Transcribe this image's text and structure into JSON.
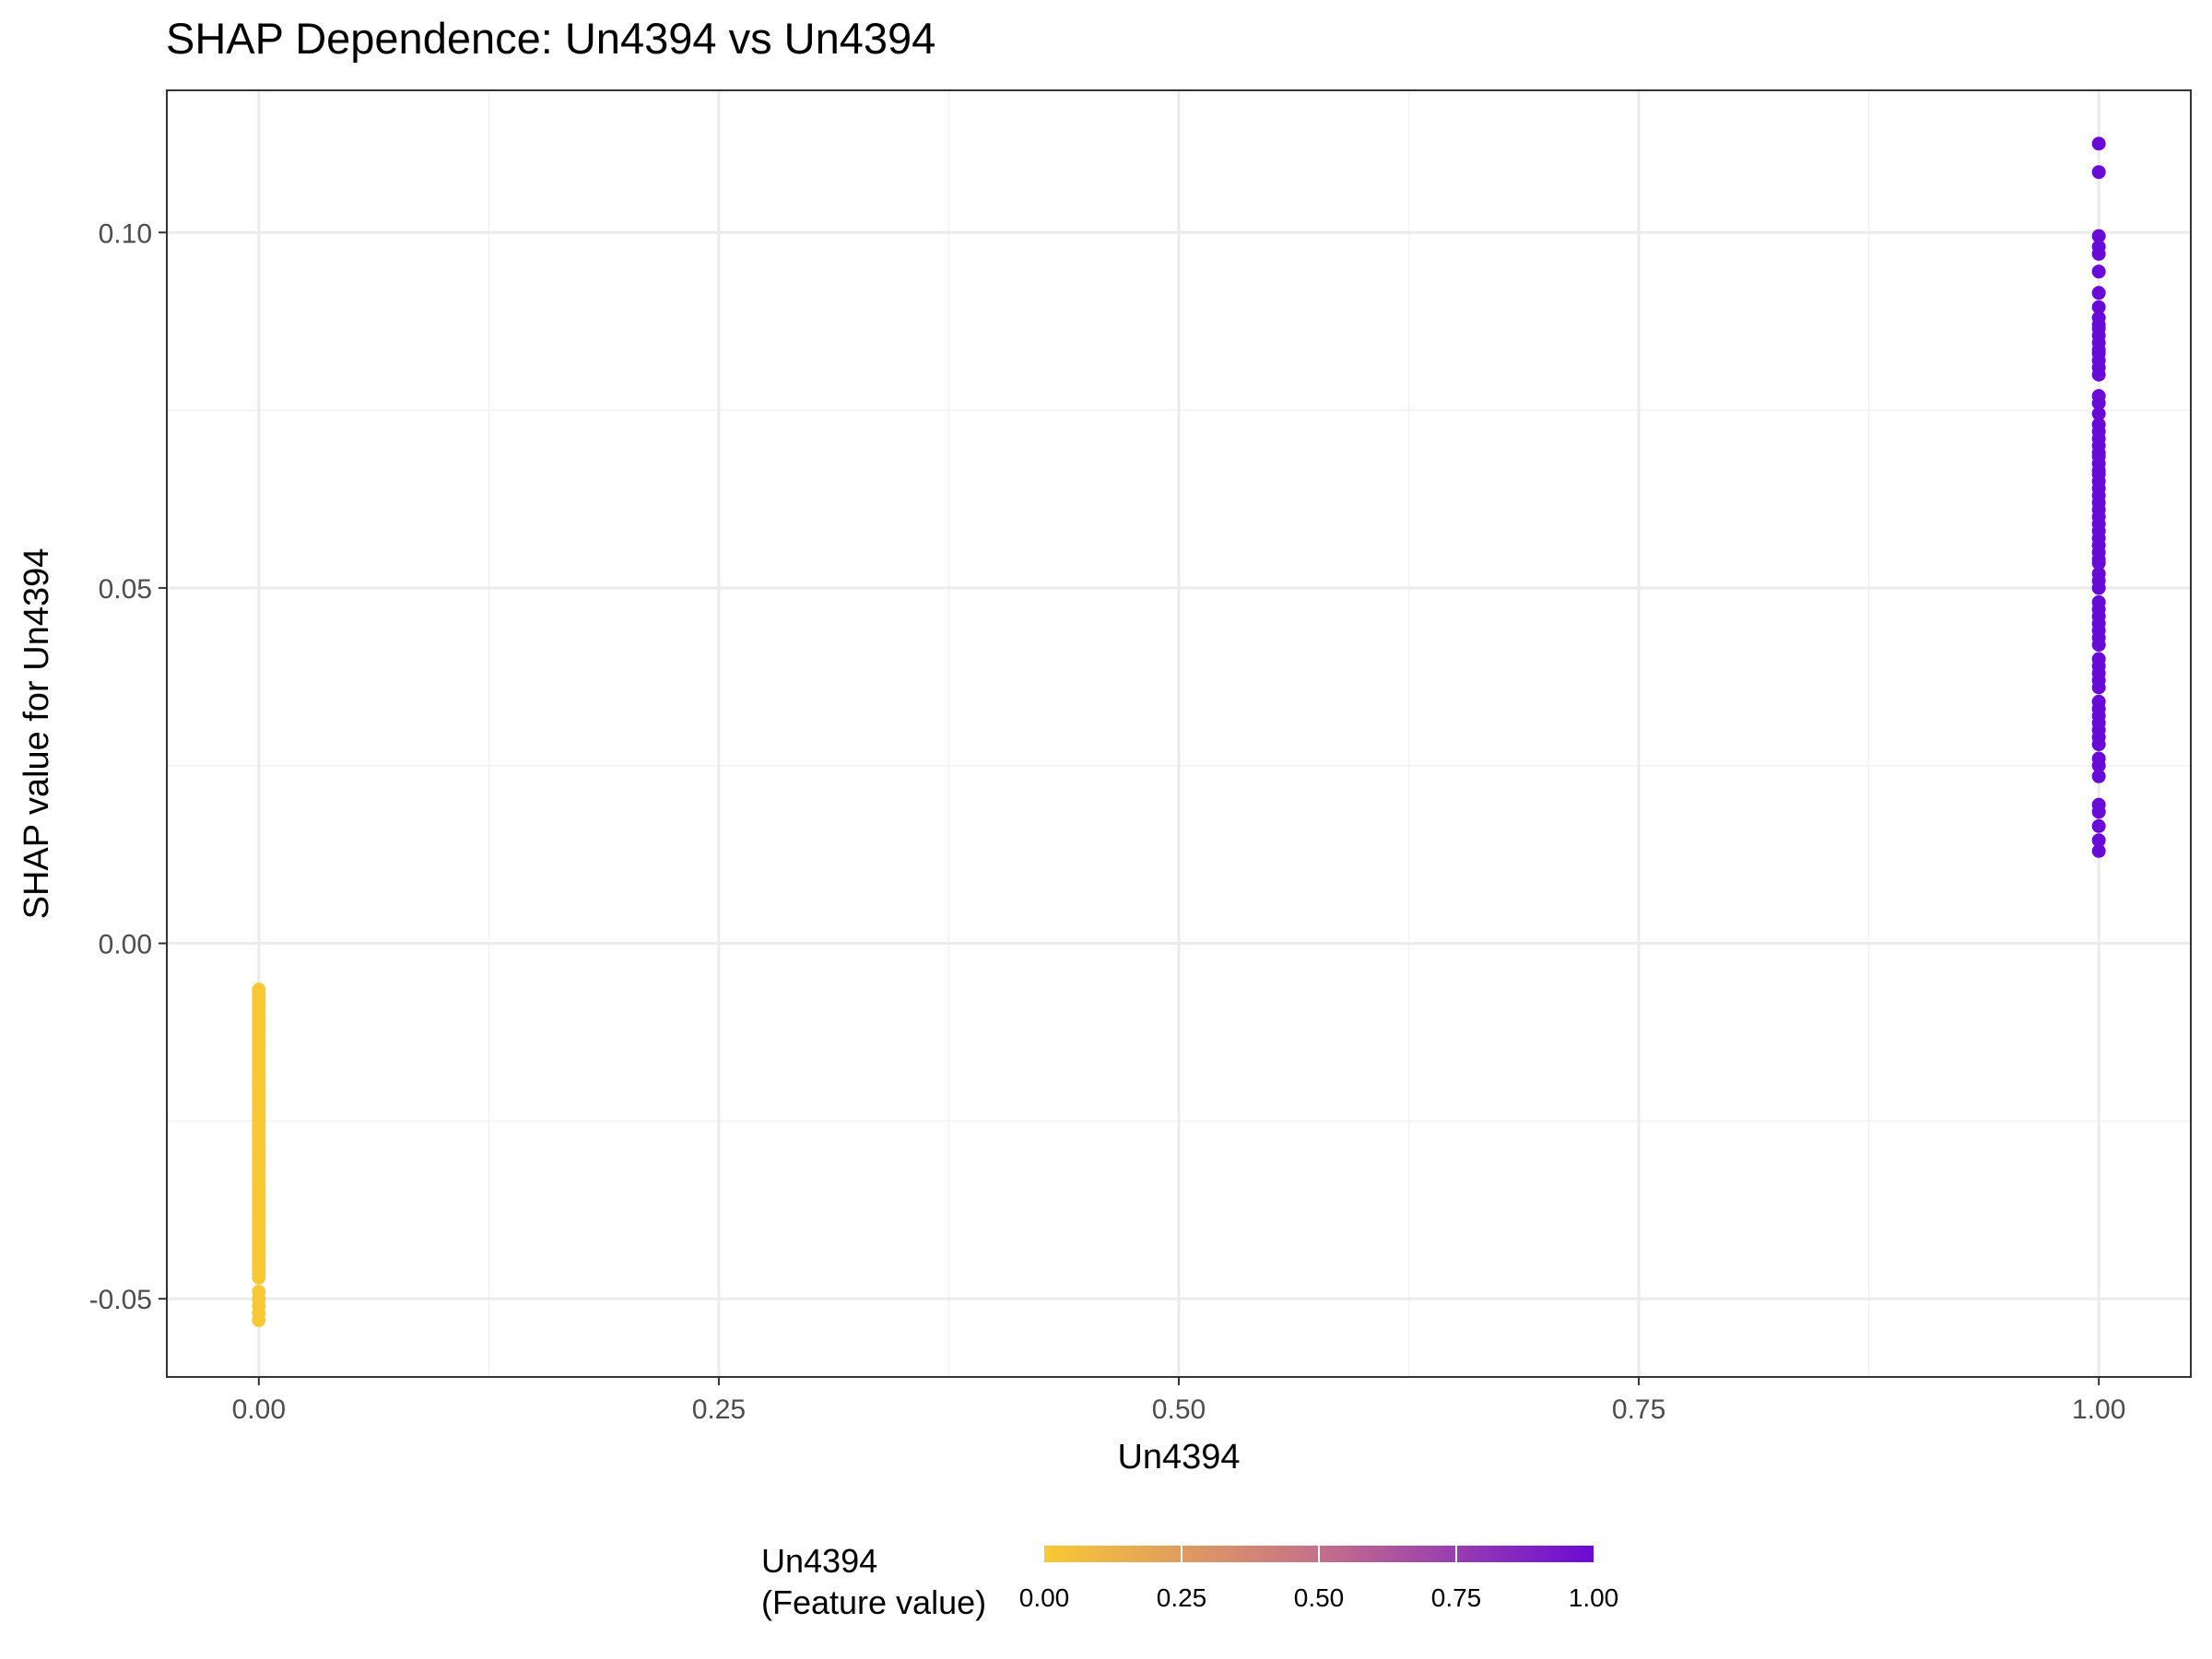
{
  "chart_data": {
    "type": "scatter",
    "title": "SHAP Dependence: Un4394 vs Un4394",
    "xlabel": "Un4394",
    "ylabel": "SHAP value for Un4394",
    "xlim": [
      -0.05,
      1.05
    ],
    "ylim": [
      -0.061,
      0.12
    ],
    "x_ticks": [
      0.0,
      0.25,
      0.5,
      0.75,
      1.0
    ],
    "x_tick_labels": [
      "0.00",
      "0.25",
      "0.50",
      "0.75",
      "1.00"
    ],
    "y_ticks": [
      -0.05,
      0.0,
      0.05,
      0.1
    ],
    "y_tick_labels": [
      "-0.05",
      "0.00",
      "0.05",
      "0.10"
    ],
    "grid": true,
    "legend": {
      "title_line1": "Un4394",
      "title_line2": "(Feature value)",
      "placement": "bottom",
      "ticks": [
        0.0,
        0.25,
        0.5,
        0.75,
        1.0
      ],
      "tick_labels": [
        "0.00",
        "0.25",
        "0.50",
        "0.75",
        "1.00"
      ],
      "color_low": "#f9c934",
      "color_high": "#6a0ad6"
    },
    "series": [
      {
        "feature_value": 0,
        "color": "#f9c934",
        "x": 0,
        "y": [
          -0.0065,
          -0.007,
          -0.0075,
          -0.008,
          -0.0085,
          -0.009,
          -0.0095,
          -0.01,
          -0.0105,
          -0.011,
          -0.0115,
          -0.012,
          -0.0125,
          -0.013,
          -0.0135,
          -0.014,
          -0.0145,
          -0.015,
          -0.0155,
          -0.016,
          -0.0165,
          -0.017,
          -0.0175,
          -0.018,
          -0.0185,
          -0.019,
          -0.0195,
          -0.02,
          -0.0205,
          -0.021,
          -0.0215,
          -0.022,
          -0.0225,
          -0.023,
          -0.0235,
          -0.024,
          -0.0245,
          -0.025,
          -0.0255,
          -0.026,
          -0.0265,
          -0.027,
          -0.0275,
          -0.028,
          -0.0285,
          -0.029,
          -0.0295,
          -0.03,
          -0.0305,
          -0.031,
          -0.0315,
          -0.032,
          -0.0325,
          -0.033,
          -0.0335,
          -0.034,
          -0.0345,
          -0.035,
          -0.0355,
          -0.036,
          -0.0365,
          -0.037,
          -0.0375,
          -0.038,
          -0.0385,
          -0.039,
          -0.0395,
          -0.04,
          -0.0405,
          -0.041,
          -0.0415,
          -0.042,
          -0.0425,
          -0.043,
          -0.0435,
          -0.044,
          -0.0445,
          -0.045,
          -0.0455,
          -0.046,
          -0.0465,
          -0.047,
          -0.049,
          -0.05,
          -0.051,
          -0.052,
          -0.053
        ]
      },
      {
        "feature_value": 1,
        "color": "#6a0ad6",
        "x": 1,
        "y": [
          0.1125,
          0.1085,
          0.0995,
          0.098,
          0.097,
          0.0945,
          0.0915,
          0.0895,
          0.088,
          0.087,
          0.0865,
          0.0855,
          0.0845,
          0.0835,
          0.083,
          0.082,
          0.081,
          0.08,
          0.077,
          0.076,
          0.0745,
          0.073,
          0.072,
          0.071,
          0.07,
          0.069,
          0.0685,
          0.0675,
          0.0665,
          0.066,
          0.065,
          0.064,
          0.063,
          0.062,
          0.061,
          0.06,
          0.059,
          0.058,
          0.057,
          0.056,
          0.055,
          0.054,
          0.0535,
          0.052,
          0.051,
          0.05,
          0.048,
          0.047,
          0.046,
          0.045,
          0.044,
          0.043,
          0.042,
          0.04,
          0.039,
          0.038,
          0.037,
          0.036,
          0.034,
          0.033,
          0.032,
          0.031,
          0.03,
          0.029,
          0.028,
          0.026,
          0.025,
          0.0235,
          0.0195,
          0.0185,
          0.0165,
          0.0145,
          0.013
        ]
      }
    ]
  }
}
